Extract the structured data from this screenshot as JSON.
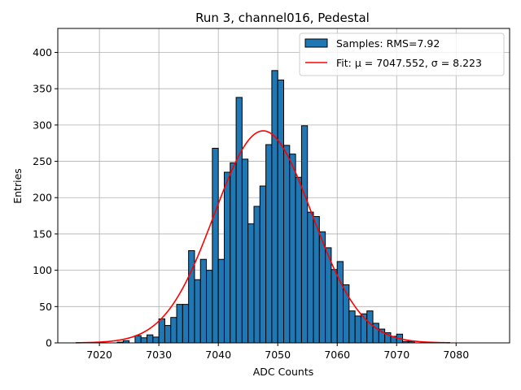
{
  "chart_data": {
    "type": "bar",
    "title": "Run 3, channel016, Pedestal",
    "xlabel": "ADC Counts",
    "ylabel": "Entries",
    "xlim": [
      7013,
      7089
    ],
    "ylim": [
      0,
      433
    ],
    "xticks": [
      7020,
      7030,
      7040,
      7050,
      7060,
      7070,
      7080
    ],
    "yticks": [
      0,
      50,
      100,
      150,
      200,
      250,
      300,
      350,
      400
    ],
    "grid": true,
    "bin_width": 1,
    "bins": [
      7016,
      7017,
      7018,
      7019,
      7020,
      7021,
      7022,
      7023,
      7024,
      7025,
      7026,
      7027,
      7028,
      7029,
      7030,
      7031,
      7032,
      7033,
      7034,
      7035,
      7036,
      7037,
      7038,
      7039,
      7040,
      7041,
      7042,
      7043,
      7044,
      7045,
      7046,
      7047,
      7048,
      7049,
      7050,
      7051,
      7052,
      7053,
      7054,
      7055,
      7056,
      7057,
      7058,
      7059,
      7060,
      7061,
      7062,
      7063,
      7064,
      7065,
      7066,
      7067,
      7068,
      7069,
      7070,
      7071,
      7072,
      7073,
      7074,
      7075,
      7076,
      7077,
      7078
    ],
    "counts": [
      0,
      0,
      0,
      0,
      0,
      0,
      0,
      1,
      3,
      0,
      10,
      7,
      11,
      8,
      33,
      24,
      35,
      53,
      53,
      127,
      87,
      115,
      100,
      268,
      115,
      235,
      248,
      338,
      253,
      164,
      188,
      216,
      273,
      375,
      362,
      272,
      260,
      228,
      299,
      180,
      174,
      153,
      131,
      101,
      112,
      80,
      44,
      37,
      40,
      44,
      27,
      19,
      14,
      9,
      12,
      2,
      2,
      0,
      0,
      0,
      0,
      0,
      0
    ],
    "legend": [
      {
        "label": "Samples: RMS=7.92",
        "color": "#1f77b4",
        "kind": "patch"
      },
      {
        "label": "Fit: μ = 7047.552, σ = 8.223",
        "color": "#ff0000",
        "kind": "line"
      }
    ],
    "legend_location": "top-right",
    "fit": {
      "mu": 7047.552,
      "sigma": 8.223,
      "amplitude": 292,
      "x_range": [
        7016,
        7079
      ]
    },
    "colors": {
      "bar_fill": "#1f77b4",
      "bar_edge": "#000000",
      "fit_line": "#ff0000",
      "grid": "#b0b0b0"
    }
  }
}
